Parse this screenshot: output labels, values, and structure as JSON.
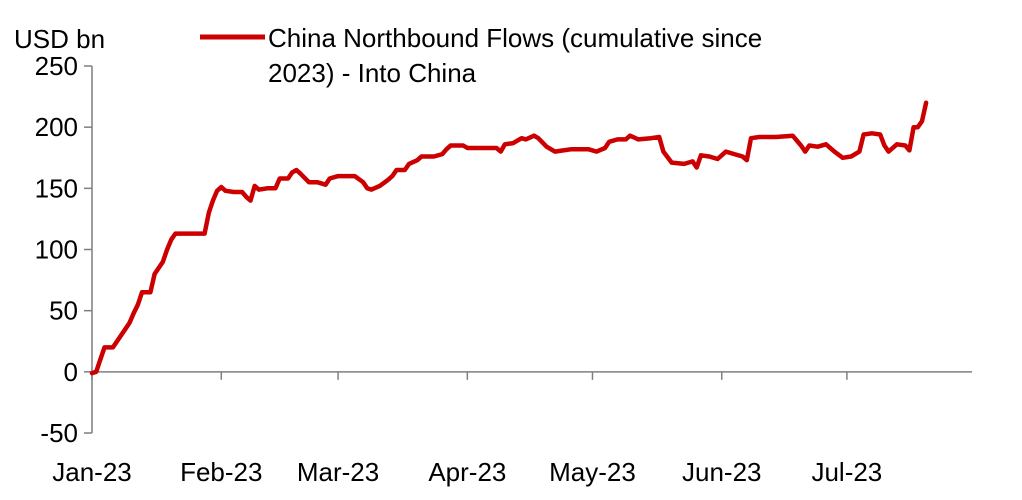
{
  "chart_data": {
    "type": "line",
    "title": "",
    "ylabel": "USD bn",
    "xlabel": "",
    "ylim": [
      -50,
      250
    ],
    "yticks": [
      -50,
      0,
      50,
      100,
      150,
      200,
      250
    ],
    "xlim": [
      "2023-01-01",
      "2023-07-31"
    ],
    "xticks": [
      {
        "label": "Jan-23",
        "date": "2023-01-01"
      },
      {
        "label": "Feb-23",
        "date": "2023-02-01"
      },
      {
        "label": "Mar-23",
        "date": "2023-03-01"
      },
      {
        "label": "Apr-23",
        "date": "2023-04-01"
      },
      {
        "label": "May-23",
        "date": "2023-05-01"
      },
      {
        "label": "Jun-23",
        "date": "2023-06-01"
      },
      {
        "label": "Jul-23",
        "date": "2023-07-01"
      }
    ],
    "grid": false,
    "legend_position": "top",
    "series": [
      {
        "name": "China Northbound Flows (cumulative since 2023) - Into China",
        "color": "#cc0000",
        "points": [
          [
            "2023-01-01",
            -1
          ],
          [
            "2023-01-02",
            0
          ],
          [
            "2023-01-03",
            10
          ],
          [
            "2023-01-04",
            20
          ],
          [
            "2023-01-06",
            20
          ],
          [
            "2023-01-08",
            30
          ],
          [
            "2023-01-10",
            40
          ],
          [
            "2023-01-11",
            48
          ],
          [
            "2023-01-12",
            55
          ],
          [
            "2023-01-13",
            65
          ],
          [
            "2023-01-15",
            65
          ],
          [
            "2023-01-16",
            80
          ],
          [
            "2023-01-18",
            90
          ],
          [
            "2023-01-19",
            100
          ],
          [
            "2023-01-20",
            108
          ],
          [
            "2023-01-21",
            113
          ],
          [
            "2023-01-27",
            113
          ],
          [
            "2023-01-28",
            113
          ],
          [
            "2023-01-29",
            130
          ],
          [
            "2023-01-30",
            140
          ],
          [
            "2023-01-31",
            148
          ],
          [
            "2023-02-01",
            151
          ],
          [
            "2023-02-02",
            148
          ],
          [
            "2023-02-04",
            147
          ],
          [
            "2023-02-06",
            147
          ],
          [
            "2023-02-07",
            143
          ],
          [
            "2023-02-08",
            140
          ],
          [
            "2023-02-09",
            152
          ],
          [
            "2023-02-10",
            149
          ],
          [
            "2023-02-12",
            150
          ],
          [
            "2023-02-14",
            150
          ],
          [
            "2023-02-15",
            158
          ],
          [
            "2023-02-17",
            158
          ],
          [
            "2023-02-18",
            163
          ],
          [
            "2023-02-19",
            165
          ],
          [
            "2023-02-20",
            162
          ],
          [
            "2023-02-22",
            155
          ],
          [
            "2023-02-24",
            155
          ],
          [
            "2023-02-26",
            153
          ],
          [
            "2023-02-27",
            158
          ],
          [
            "2023-03-01",
            160
          ],
          [
            "2023-03-03",
            160
          ],
          [
            "2023-03-05",
            160
          ],
          [
            "2023-03-07",
            155
          ],
          [
            "2023-03-08",
            150
          ],
          [
            "2023-03-09",
            149
          ],
          [
            "2023-03-11",
            152
          ],
          [
            "2023-03-13",
            157
          ],
          [
            "2023-03-14",
            160
          ],
          [
            "2023-03-15",
            165
          ],
          [
            "2023-03-17",
            165
          ],
          [
            "2023-03-18",
            170
          ],
          [
            "2023-03-20",
            173
          ],
          [
            "2023-03-21",
            176
          ],
          [
            "2023-03-24",
            176
          ],
          [
            "2023-03-26",
            178
          ],
          [
            "2023-03-27",
            182
          ],
          [
            "2023-03-28",
            185
          ],
          [
            "2023-03-31",
            185
          ],
          [
            "2023-04-01",
            183
          ],
          [
            "2023-04-05",
            183
          ],
          [
            "2023-04-08",
            183
          ],
          [
            "2023-04-09",
            180
          ],
          [
            "2023-04-10",
            186
          ],
          [
            "2023-04-12",
            187
          ],
          [
            "2023-04-14",
            191
          ],
          [
            "2023-04-15",
            190
          ],
          [
            "2023-04-17",
            193
          ],
          [
            "2023-04-18",
            191
          ],
          [
            "2023-04-20",
            184
          ],
          [
            "2023-04-22",
            180
          ],
          [
            "2023-04-24",
            181
          ],
          [
            "2023-04-26",
            182
          ],
          [
            "2023-04-30",
            182
          ],
          [
            "2023-05-02",
            180
          ],
          [
            "2023-05-04",
            183
          ],
          [
            "2023-05-05",
            188
          ],
          [
            "2023-05-07",
            190
          ],
          [
            "2023-05-09",
            190
          ],
          [
            "2023-05-10",
            193
          ],
          [
            "2023-05-12",
            190
          ],
          [
            "2023-05-15",
            191
          ],
          [
            "2023-05-17",
            192
          ],
          [
            "2023-05-18",
            180
          ],
          [
            "2023-05-20",
            171
          ],
          [
            "2023-05-23",
            170
          ],
          [
            "2023-05-25",
            172
          ],
          [
            "2023-05-26",
            167
          ],
          [
            "2023-05-27",
            177
          ],
          [
            "2023-05-29",
            176
          ],
          [
            "2023-05-31",
            174
          ],
          [
            "2023-06-02",
            180
          ],
          [
            "2023-06-04",
            178
          ],
          [
            "2023-06-06",
            176
          ],
          [
            "2023-06-07",
            173
          ],
          [
            "2023-06-08",
            191
          ],
          [
            "2023-06-10",
            192
          ],
          [
            "2023-06-14",
            192
          ],
          [
            "2023-06-18",
            193
          ],
          [
            "2023-06-20",
            185
          ],
          [
            "2023-06-21",
            180
          ],
          [
            "2023-06-22",
            185
          ],
          [
            "2023-06-24",
            184
          ],
          [
            "2023-06-26",
            186
          ],
          [
            "2023-06-28",
            180
          ],
          [
            "2023-06-30",
            175
          ],
          [
            "2023-07-02",
            176
          ],
          [
            "2023-07-04",
            180
          ],
          [
            "2023-07-05",
            194
          ],
          [
            "2023-07-07",
            195
          ],
          [
            "2023-07-09",
            194
          ],
          [
            "2023-07-10",
            185
          ],
          [
            "2023-07-11",
            180
          ],
          [
            "2023-07-13",
            186
          ],
          [
            "2023-07-15",
            185
          ],
          [
            "2023-07-16",
            181
          ],
          [
            "2023-07-17",
            200
          ],
          [
            "2023-07-18",
            200
          ],
          [
            "2023-07-19",
            205
          ],
          [
            "2023-07-20",
            220
          ]
        ]
      }
    ]
  }
}
